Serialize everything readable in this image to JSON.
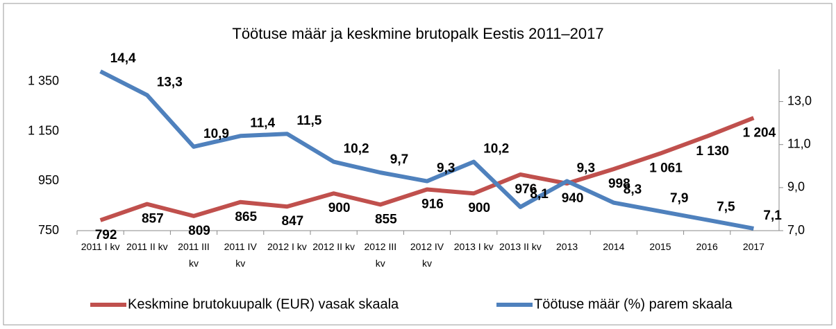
{
  "chart_data": {
    "type": "line",
    "title": "Töötuse määr ja keskmine brutopalk Eestis 2011–2017",
    "categories": [
      "2011 I kv",
      "2011 II kv",
      "2011 III kv",
      "2011 IV kv",
      "2012 I kv",
      "2012 II kv",
      "2012 III kv",
      "2012 IV kv",
      "2013 I kv",
      "2013 II kv",
      "2013",
      "2014",
      "2015",
      "2016",
      "2017"
    ],
    "series": [
      {
        "name": "Keskmine brutokuupalk (EUR) vasak skaala",
        "color": "#c0504d",
        "axis": "y",
        "values": [
          792,
          857,
          809,
          865,
          847,
          900,
          855,
          916,
          900,
          976,
          940,
          998,
          1061,
          1130,
          1204
        ],
        "value_labels": [
          "792",
          "857",
          "809",
          "865",
          "847",
          "900",
          "855",
          "916",
          "900",
          "976",
          "940",
          "998",
          "1 061",
          "1 130",
          "1 204"
        ]
      },
      {
        "name": "Töötuse määr (%) parem skaala",
        "color": "#4f81bd",
        "axis": "y2",
        "values": [
          14.4,
          13.3,
          10.9,
          11.4,
          11.5,
          10.2,
          9.7,
          9.3,
          10.2,
          8.1,
          9.3,
          8.3,
          7.9,
          7.5,
          7.1
        ],
        "value_labels": [
          "14,4",
          "13,3",
          "10,9",
          "11,4",
          "11,5",
          "10,2",
          "9,7",
          "9,3",
          "10,2",
          "8,1",
          "9,3",
          "8,3",
          "7,9",
          "7,5",
          "7,1"
        ]
      }
    ],
    "ylim": [
      750,
      1400
    ],
    "yticks": [
      750,
      950,
      {
        "value": 1150,
        "label": "1 150"
      },
      {
        "value": 1350,
        "label": "1 350"
      }
    ],
    "y2lim": [
      7,
      14.5
    ],
    "y2ticks": [
      {
        "value": 7,
        "label": "7,0"
      },
      {
        "value": 9,
        "label": "9,0"
      },
      {
        "value": 11,
        "label": "11,0"
      },
      {
        "value": 13,
        "label": "13,0"
      }
    ],
    "legend": "bottom"
  }
}
